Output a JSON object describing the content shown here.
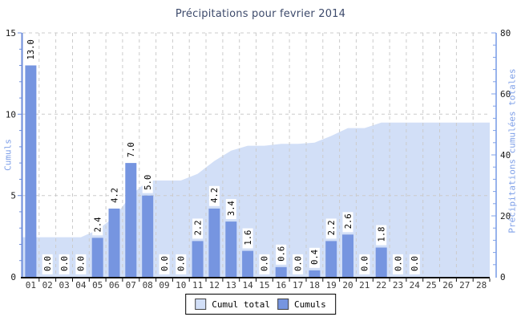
{
  "title": "Précipitations pour fevrier 2014",
  "left_axis": {
    "title": "Cumuls",
    "tick_labels": [
      "0",
      "5",
      "10",
      "15"
    ],
    "min": 0,
    "max": 15,
    "major_step": 5,
    "minor_step": 1
  },
  "right_axis": {
    "title": "Précipitations cumulées totales",
    "tick_labels": [
      "0",
      "20",
      "40",
      "60",
      "80"
    ],
    "min": 0,
    "max": 80,
    "major_step": 20,
    "minor_step": 4
  },
  "x_axis": {
    "tick_labels": [
      "01",
      "02",
      "03",
      "04",
      "05",
      "06",
      "07",
      "08",
      "09",
      "10",
      "11",
      "12",
      "13",
      "14",
      "15",
      "16",
      "17",
      "18",
      "19",
      "20",
      "21",
      "22",
      "23",
      "24",
      "25",
      "26",
      "27",
      "28"
    ]
  },
  "legend": {
    "items": [
      {
        "label": "Cumul total",
        "swatch_color_key": "area"
      },
      {
        "label": "Cumuls",
        "swatch_color_key": "bar"
      }
    ]
  },
  "colors": {
    "bar": "#7695E0",
    "area": "#D2DFF7",
    "grid": "#CBCBCB",
    "title": "#3D4A6B",
    "axis_titles": "#7FA0E8",
    "left_axis_line": "#6E8DDB",
    "right_axis_line": "#7FA0E8",
    "bottom_axis_line": "#111111",
    "tick_text": "#1A1A1A",
    "x_label_text": "#3A3A3A",
    "value_label": "#000000",
    "value_label_halo": "#FFFFFF",
    "swatch_border": "#444444"
  },
  "chart_data": {
    "type": "bar",
    "title": "Précipitations pour fevrier 2014",
    "categories": [
      "01",
      "02",
      "03",
      "04",
      "05",
      "06",
      "07",
      "08",
      "09",
      "10",
      "11",
      "12",
      "13",
      "14",
      "15",
      "16",
      "17",
      "18",
      "19",
      "20",
      "21",
      "22",
      "23",
      "24",
      "25",
      "26",
      "27",
      "28"
    ],
    "series": [
      {
        "name": "Cumuls",
        "type": "bar",
        "axis": "left",
        "values": [
          13.0,
          0.0,
          0.0,
          0.0,
          2.4,
          4.2,
          7.0,
          5.0,
          0.0,
          0.0,
          2.2,
          4.2,
          3.4,
          1.6,
          0.0,
          0.6,
          0.0,
          0.4,
          2.2,
          2.6,
          0.0,
          1.8,
          0.0,
          0.0,
          null,
          null,
          null,
          null
        ],
        "data_labels": "one-decimal-rotated"
      },
      {
        "name": "Cumul total",
        "type": "area",
        "axis": "right",
        "values": [
          13.0,
          13.0,
          13.0,
          13.0,
          15.4,
          19.6,
          26.6,
          31.6,
          31.6,
          31.6,
          33.8,
          38.0,
          41.4,
          43.0,
          43.0,
          43.6,
          43.6,
          44.0,
          46.2,
          48.8,
          48.8,
          50.6,
          50.6,
          50.6,
          50.6,
          50.6,
          50.6,
          50.6
        ]
      }
    ],
    "ylabel_left": "Cumuls",
    "ylabel_right": "Précipitations cumulées totales",
    "ylim_left": [
      0,
      15
    ],
    "ylim_right": [
      0,
      80
    ],
    "grid": "dashed",
    "legend_position": "bottom-center"
  }
}
